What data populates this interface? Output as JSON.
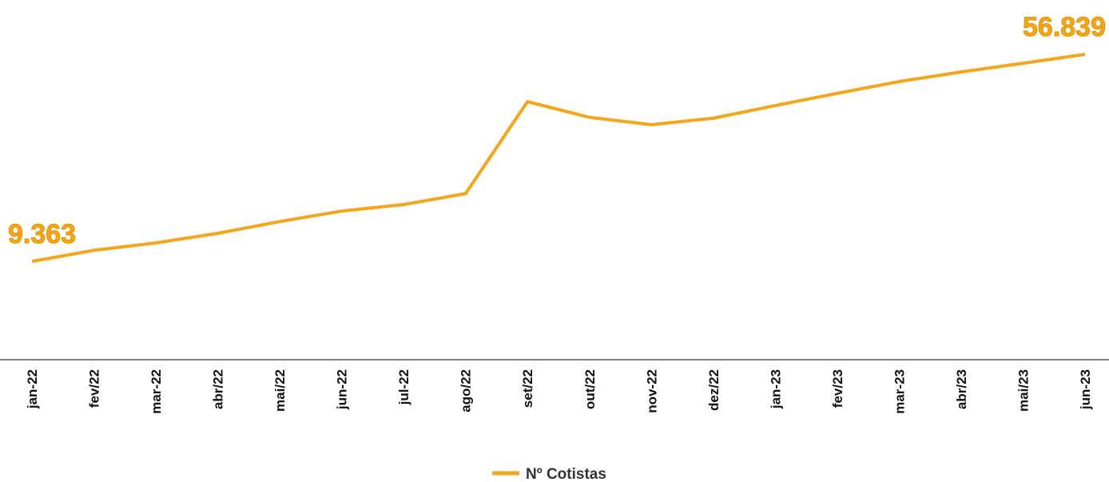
{
  "chart_data": {
    "type": "line",
    "categories": [
      "jan-22",
      "fev/22",
      "mar-22",
      "abr/22",
      "mai/22",
      "jun-22",
      "jul-22",
      "ago/22",
      "set/22",
      "out/22",
      "nov-22",
      "dez/22",
      "jan-23",
      "fev/23",
      "mar-23",
      "abr/23",
      "mai/23",
      "jun-23"
    ],
    "series": [
      {
        "name": "Nº Cotistas",
        "color": "#f5a51a",
        "values": [
          9363,
          11900,
          13600,
          15800,
          18500,
          20900,
          22400,
          24900,
          46000,
          42400,
          40700,
          42200,
          45100,
          47900,
          50600,
          52800,
          54800,
          56839
        ],
        "value_labels": [
          "9.363",
          null,
          null,
          null,
          null,
          null,
          null,
          null,
          null,
          null,
          null,
          null,
          null,
          null,
          null,
          null,
          null,
          "56.839"
        ]
      }
    ],
    "legend": "bottom"
  }
}
